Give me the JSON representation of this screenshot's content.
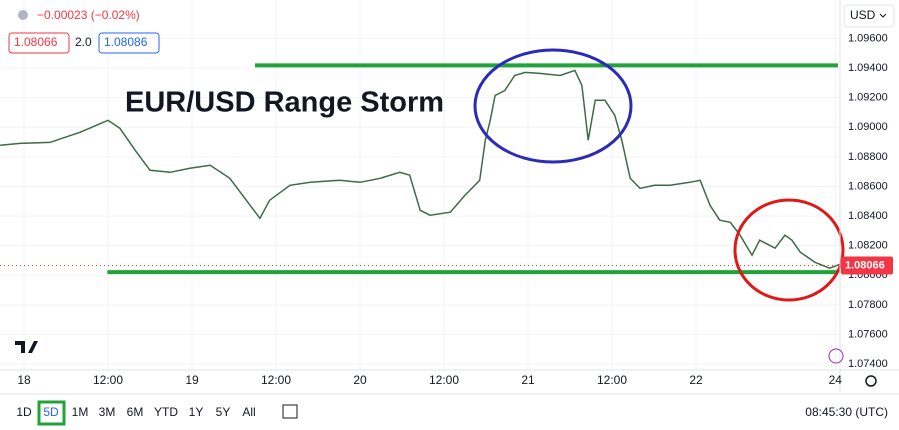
{
  "chart_data": {
    "type": "line",
    "title": "EUR/USD Range Storm",
    "currency": "USD",
    "quote": {
      "change": "−0.00023 (−0.02%)",
      "bid": "1.08066",
      "spread": "2.0",
      "ask": "1.08086"
    },
    "last_price": {
      "value": 1.08066,
      "label": "1.08066"
    },
    "x": [
      -3.4,
      -0.6,
      3.7,
      8,
      12,
      13.7,
      15.9,
      18,
      20.9,
      23.7,
      26.6,
      29.4,
      32.3,
      33.7,
      35.1,
      38,
      40.9,
      45.1,
      48,
      50.9,
      53.7,
      55.1,
      56.6,
      58,
      60.9,
      63,
      65.1,
      65.9,
      66.6,
      67.3,
      68.7,
      70.1,
      71.6,
      73.7,
      76.6,
      78.7,
      79.7,
      80.6,
      81.6,
      83,
      84.4,
      85.4,
      86.6,
      88,
      90.1,
      92.3,
      95.1,
      96.6,
      98,
      99.4,
      100.9,
      102.3,
      104,
      105.1,
      107.3,
      108.7,
      109.7,
      110.9,
      113,
      115.1,
      116.6
    ],
    "series": [
      {
        "name": "EUR/USD",
        "color": "#3d6b45",
        "values": [
          1.08878,
          1.08891,
          1.08898,
          1.08966,
          1.09047,
          1.08993,
          1.08844,
          1.08709,
          1.08696,
          1.08723,
          1.08743,
          1.08655,
          1.08473,
          1.08385,
          1.08507,
          1.08608,
          1.08628,
          1.08642,
          1.08628,
          1.08655,
          1.08696,
          1.08676,
          1.08439,
          1.08406,
          1.08426,
          1.08541,
          1.08642,
          1.08912,
          1.09047,
          1.09215,
          1.09249,
          1.0935,
          1.09371,
          1.09364,
          1.0935,
          1.09384,
          1.09283,
          1.08912,
          1.09182,
          1.09182,
          1.0908,
          1.08912,
          1.08655,
          1.08588,
          1.08608,
          1.08608,
          1.08628,
          1.08642,
          1.08473,
          1.08372,
          1.08358,
          1.08271,
          1.08136,
          1.08237,
          1.08183,
          1.08271,
          1.08237,
          1.08156,
          1.08088,
          1.08048,
          1.08075
        ]
      }
    ],
    "hlines": [
      {
        "value": 1.09418,
        "x_start": 33,
        "color": "#22a33a"
      },
      {
        "value": 1.08021,
        "x_start": 11.9,
        "color": "#22a33a"
      }
    ],
    "xlim": [
      -3.43,
      116.57
    ],
    "ylim": [
      1.0736,
      1.0986
    ],
    "xticks": [
      {
        "value": 0,
        "label": "18"
      },
      {
        "value": 12,
        "label": "12:00"
      },
      {
        "value": 24,
        "label": "19"
      },
      {
        "value": 36,
        "label": "12:00"
      },
      {
        "value": 48,
        "label": "20"
      },
      {
        "value": 60,
        "label": "12:00"
      },
      {
        "value": 72,
        "label": "21"
      },
      {
        "value": 84,
        "label": "12:00"
      },
      {
        "value": 96,
        "label": "22"
      },
      {
        "value": 115.9,
        "label": "24"
      }
    ],
    "yticks": [
      {
        "value": 1.074,
        "label": "1.07400"
      },
      {
        "value": 1.076,
        "label": "1.07600"
      },
      {
        "value": 1.078,
        "label": "1.07800"
      },
      {
        "value": 1.08,
        "label": "1.08000"
      },
      {
        "value": 1.082,
        "label": "1.08200"
      },
      {
        "value": 1.084,
        "label": "1.08400"
      },
      {
        "value": 1.086,
        "label": "1.08600"
      },
      {
        "value": 1.088,
        "label": "1.08800"
      },
      {
        "value": 1.09,
        "label": "1.09000"
      },
      {
        "value": 1.092,
        "label": "1.09200"
      },
      {
        "value": 1.094,
        "label": "1.09400"
      },
      {
        "value": 1.096,
        "label": "1.09600"
      }
    ],
    "grid": true
  },
  "toolbar": {
    "ranges": [
      "1D",
      "5D",
      "1M",
      "3M",
      "6M",
      "YTD",
      "1Y",
      "5Y",
      "All"
    ],
    "selected": "5D",
    "clock": "08:45:30 (UTC)"
  }
}
